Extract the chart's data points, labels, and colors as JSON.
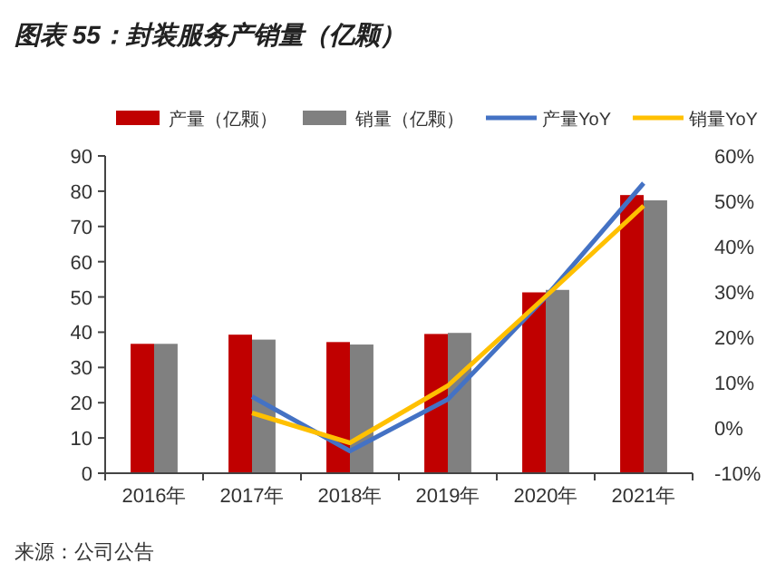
{
  "chart_data": {
    "type": "bar",
    "title": "图表 55：封装服务产销量（亿颗）",
    "categories": [
      "2016年",
      "2017年",
      "2018年",
      "2019年",
      "2020年",
      "2021年"
    ],
    "series": [
      {
        "name": "产量（亿颗）",
        "color": "#c00000",
        "values": [
          36.7,
          39.3,
          37.2,
          39.5,
          51.3,
          78.9
        ]
      },
      {
        "name": "销量（亿颗）",
        "color": "#808080",
        "values": [
          36.7,
          37.9,
          36.5,
          39.8,
          52.0,
          77.4
        ]
      },
      {
        "name": "产量YoY",
        "type": "line",
        "axis": "y2",
        "color": "#4472c4",
        "values": [
          null,
          6.9,
          -5.1,
          6.3,
          28.9,
          54.0
        ]
      },
      {
        "name": "销量YoY",
        "type": "line",
        "axis": "y2",
        "color": "#ffc000",
        "values": [
          null,
          3.3,
          -3.3,
          9.3,
          29.0,
          49.0
        ]
      }
    ],
    "ylim": [
      0,
      90
    ],
    "yticks": [
      0,
      10,
      20,
      30,
      40,
      50,
      60,
      70,
      80,
      90
    ],
    "y2lim": [
      -10,
      60
    ],
    "y2ticks": [
      {
        "value": -10,
        "label": "-10%"
      },
      {
        "value": 0,
        "label": "0%"
      },
      {
        "value": 10,
        "label": "10%"
      },
      {
        "value": 20,
        "label": "20%"
      },
      {
        "value": 30,
        "label": "30%"
      },
      {
        "value": 40,
        "label": "40%"
      },
      {
        "value": 50,
        "label": "50%"
      },
      {
        "value": 60,
        "label": "60%"
      }
    ],
    "legend": "top",
    "grid": false,
    "marker": "none",
    "annotations": [
      "来源：公司公告"
    ]
  }
}
